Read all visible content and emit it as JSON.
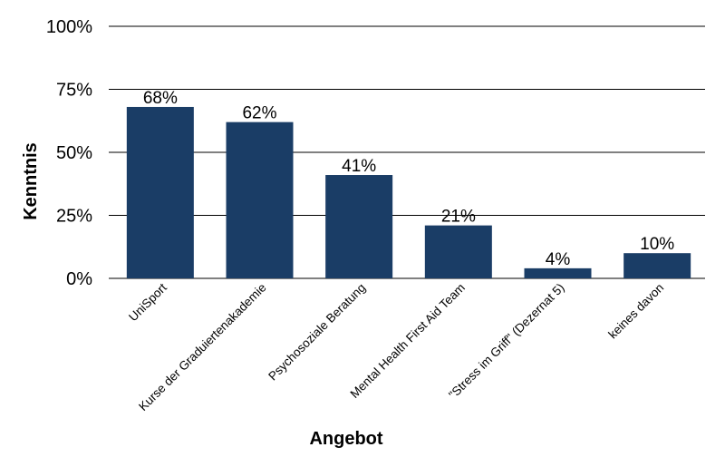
{
  "chart_data": {
    "type": "bar",
    "title": "",
    "xlabel": "Angebot",
    "ylabel": "Kenntnis",
    "categories": [
      "UniSport",
      "Kurse der Graduiertenakademie",
      "Psychosoziale Beratung",
      "Mental Health First Aid Team",
      "\"Stress im Griff\" (Dezernat 5)",
      "keines davon"
    ],
    "values": [
      68,
      62,
      41,
      21,
      4,
      10
    ],
    "data_labels": [
      "68%",
      "62%",
      "41%",
      "21%",
      "4%",
      "10%"
    ],
    "ylim": [
      0,
      100
    ],
    "yticks": [
      0,
      25,
      50,
      75,
      100
    ],
    "ytick_labels": [
      "0%",
      "25%",
      "50%",
      "75%",
      "100%"
    ],
    "grid": true,
    "legend": "none",
    "bar_color": "#1a3d66"
  }
}
